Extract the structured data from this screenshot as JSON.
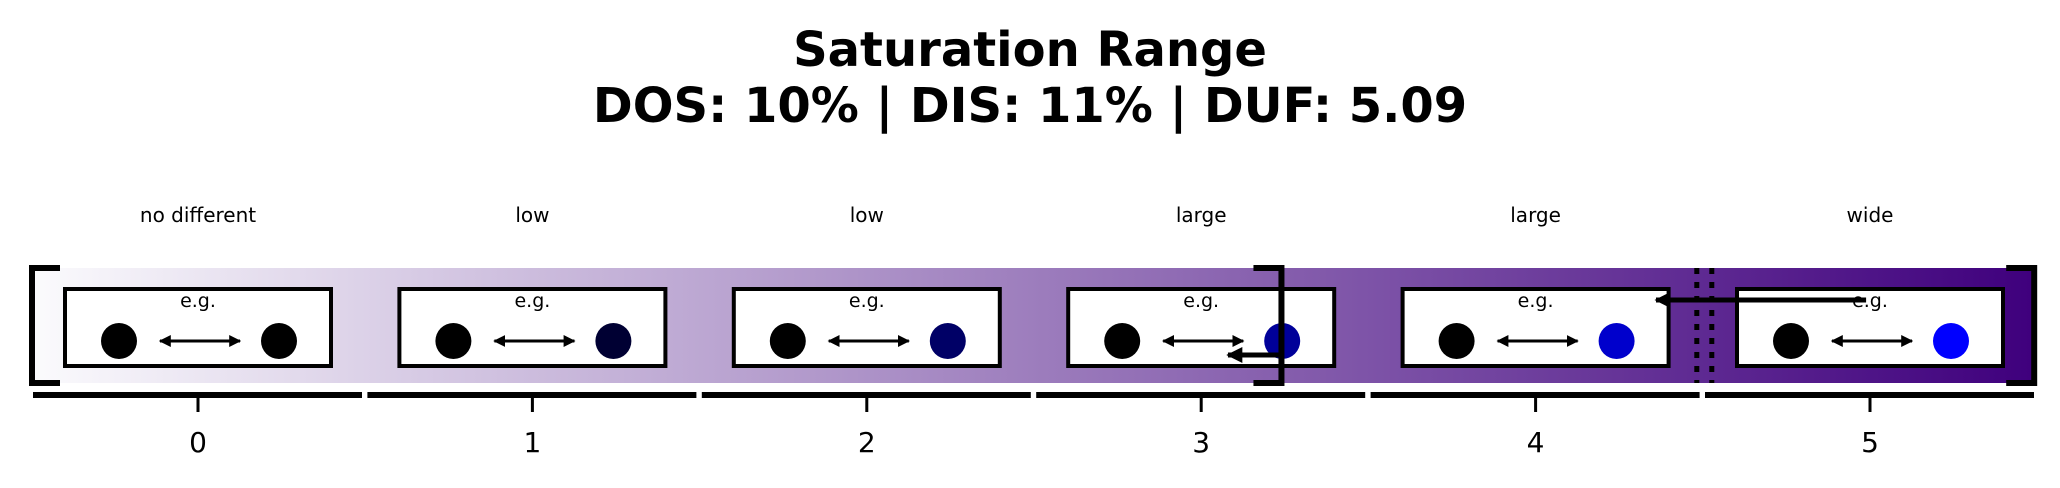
{
  "title": {
    "line1": "Saturation Range",
    "line2": "DOS: 10% | DIS: 11% | DUF: 5.09"
  },
  "example_label": "e.g.",
  "gradient": {
    "start": "#fbfbfd",
    "end": "#3f007d"
  },
  "levels": [
    {
      "tick": "0",
      "label": "no different",
      "left_dot": "#000000",
      "right_dot": "#000000"
    },
    {
      "tick": "1",
      "label": "low",
      "left_dot": "#000000",
      "right_dot": "#000033"
    },
    {
      "tick": "2",
      "label": "low",
      "left_dot": "#000000",
      "right_dot": "#000066"
    },
    {
      "tick": "3",
      "label": "large",
      "left_dot": "#000000",
      "right_dot": "#000099"
    },
    {
      "tick": "4",
      "label": "large",
      "left_dot": "#000000",
      "right_dot": "#0000cc"
    },
    {
      "tick": "5",
      "label": "wide",
      "left_dot": "#000000",
      "right_dot": "#0000ff"
    }
  ],
  "markers": {
    "dis": {
      "from": 3.24,
      "to": 3.08
    },
    "duf": {
      "from": 5.09,
      "to": 4.36
    },
    "range": {
      "from": 0,
      "to": 3.24,
      "end": 5.5
    },
    "dos": 4.5
  }
}
